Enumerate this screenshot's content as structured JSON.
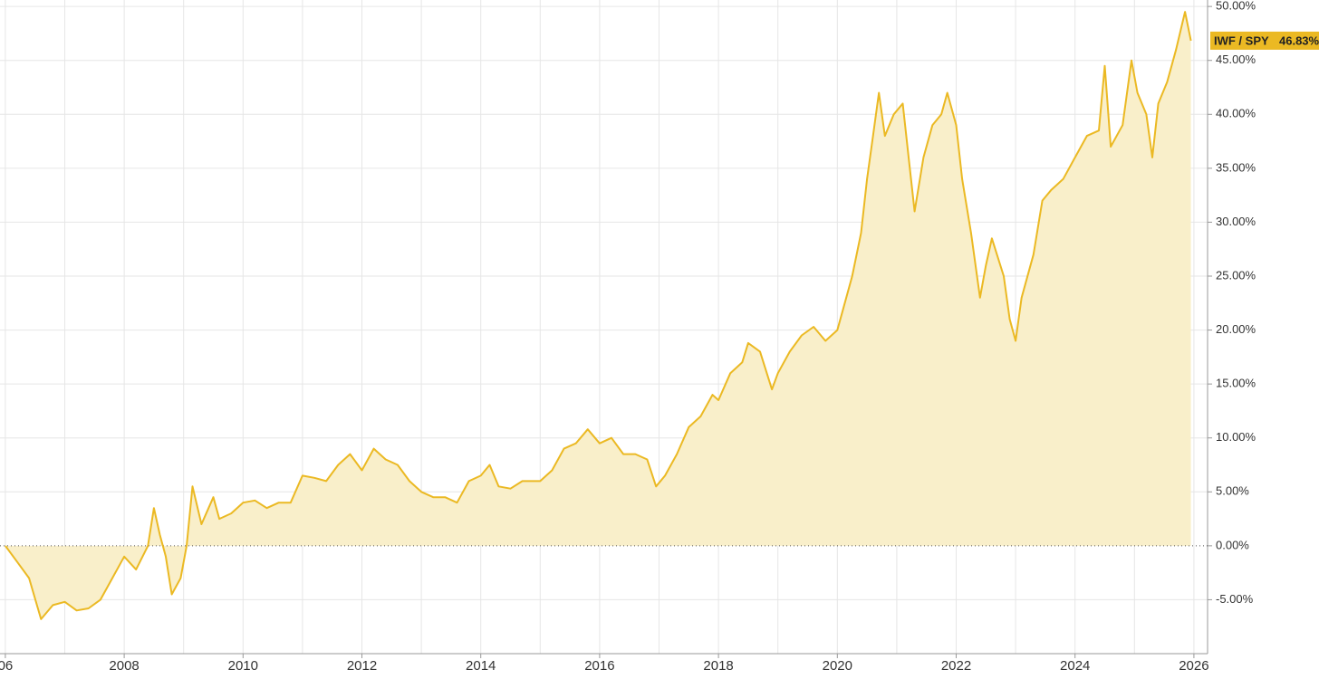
{
  "chart_data": {
    "type": "area",
    "x": [
      2006.0,
      2006.2,
      2006.4,
      2006.6,
      2006.8,
      2007.0,
      2007.2,
      2007.4,
      2007.6,
      2007.8,
      2008.0,
      2008.2,
      2008.4,
      2008.5,
      2008.6,
      2008.7,
      2008.8,
      2008.95,
      2009.05,
      2009.15,
      2009.3,
      2009.5,
      2009.6,
      2009.8,
      2010.0,
      2010.2,
      2010.4,
      2010.6,
      2010.8,
      2011.0,
      2011.2,
      2011.4,
      2011.6,
      2011.8,
      2012.0,
      2012.2,
      2012.4,
      2012.6,
      2012.8,
      2013.0,
      2013.2,
      2013.4,
      2013.6,
      2013.8,
      2014.0,
      2014.15,
      2014.3,
      2014.5,
      2014.7,
      2015.0,
      2015.2,
      2015.4,
      2015.6,
      2015.8,
      2016.0,
      2016.2,
      2016.4,
      2016.6,
      2016.8,
      2016.95,
      2017.1,
      2017.3,
      2017.5,
      2017.7,
      2017.9,
      2018.0,
      2018.2,
      2018.4,
      2018.5,
      2018.7,
      2018.9,
      2019.0,
      2019.2,
      2019.4,
      2019.6,
      2019.8,
      2020.0,
      2020.1,
      2020.25,
      2020.4,
      2020.5,
      2020.6,
      2020.7,
      2020.8,
      2020.95,
      2021.1,
      2021.2,
      2021.3,
      2021.45,
      2021.6,
      2021.75,
      2021.85,
      2022.0,
      2022.1,
      2022.25,
      2022.4,
      2022.5,
      2022.6,
      2022.8,
      2022.9,
      2023.0,
      2023.1,
      2023.3,
      2023.45,
      2023.6,
      2023.8,
      2024.0,
      2024.2,
      2024.4,
      2024.5,
      2024.6,
      2024.8,
      2024.95,
      2025.05,
      2025.2,
      2025.3,
      2025.4,
      2025.55,
      2025.7,
      2025.85,
      2025.95
    ],
    "series": [
      {
        "name": "IWF / SPY",
        "color": "#ebb923",
        "fill": "#f9efca",
        "values": [
          0,
          -1.5,
          -3,
          -6.8,
          -5.5,
          -5.2,
          -6,
          -5.8,
          -5,
          -3,
          -1,
          -2.2,
          0,
          3.5,
          1,
          -1,
          -4.5,
          -3,
          0,
          5.5,
          2,
          4.5,
          2.5,
          3,
          4,
          4.2,
          3.5,
          4,
          4,
          6.5,
          6.3,
          6,
          7.5,
          8.5,
          7,
          9,
          8,
          7.5,
          6,
          5,
          4.5,
          4.5,
          4,
          6,
          6.5,
          7.5,
          5.5,
          5.3,
          6,
          6,
          7,
          9,
          9.5,
          10.8,
          9.5,
          10,
          8.5,
          8.5,
          8,
          5.5,
          6.5,
          8.5,
          11,
          12,
          14,
          13.5,
          16,
          17,
          18.8,
          18,
          14.5,
          16,
          18,
          19.5,
          20.3,
          19,
          20,
          22,
          25,
          29,
          34,
          38,
          42,
          38,
          40,
          41,
          36,
          31,
          36,
          39,
          40,
          42,
          39,
          34,
          29,
          23,
          26,
          28.5,
          25,
          21,
          19,
          23,
          27,
          32,
          33,
          34,
          36,
          38,
          38.5,
          44.5,
          37,
          39,
          45,
          42,
          40,
          36,
          41,
          43,
          46,
          49.5,
          46.83
        ]
      }
    ],
    "last_value": {
      "value": 46.83,
      "label": "46.83%"
    },
    "xlim": [
      2005.91,
      2026.23
    ],
    "xticks": [
      {
        "value": 2006,
        "label": "06"
      },
      2008,
      2010,
      2012,
      2014,
      2016,
      2018,
      2020,
      2022,
      2024,
      2026
    ],
    "x_minor_grid": [
      2007,
      2009,
      2011,
      2013,
      2015,
      2017,
      2019,
      2021,
      2023,
      2025
    ],
    "ylim": [
      -10,
      50.6
    ],
    "yticks": [
      {
        "value": -5,
        "label": "-5.00%"
      },
      {
        "value": 0,
        "label": "0.00%"
      },
      {
        "value": 5,
        "label": "5.00%"
      },
      {
        "value": 10,
        "label": "10.00%"
      },
      {
        "value": 15,
        "label": "15.00%"
      },
      {
        "value": 20,
        "label": "20.00%"
      },
      {
        "value": 25,
        "label": "25.00%"
      },
      {
        "value": 30,
        "label": "30.00%"
      },
      {
        "value": 35,
        "label": "35.00%"
      },
      {
        "value": 40,
        "label": "40.00%"
      },
      {
        "value": 45,
        "label": "45.00%"
      },
      {
        "value": 50,
        "label": "50.00%"
      }
    ],
    "grid": true,
    "zero_line": true
  }
}
